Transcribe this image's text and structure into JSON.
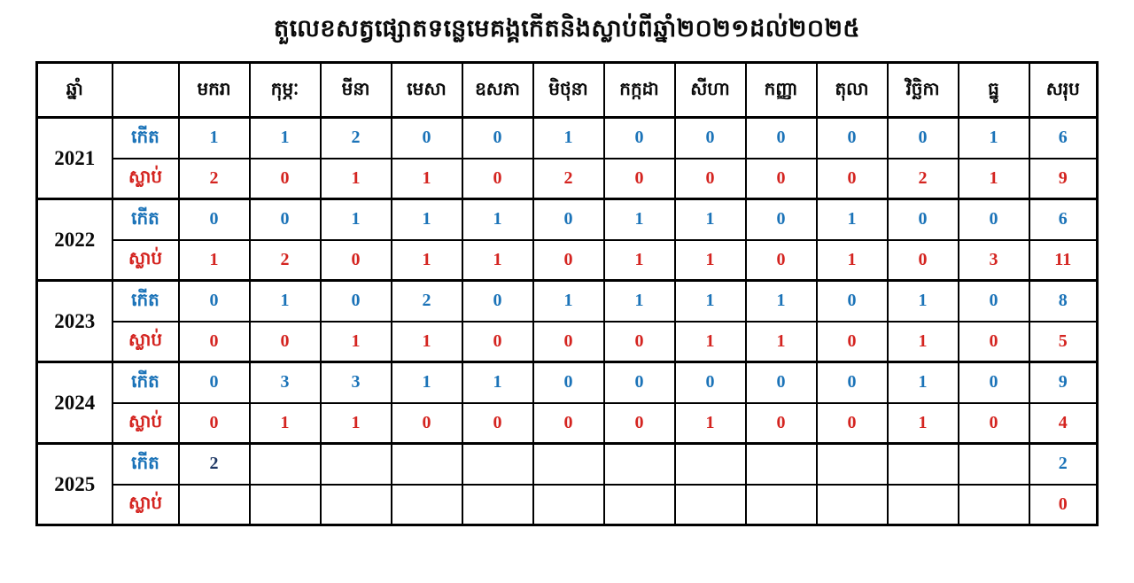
{
  "title": "តួលេខសត្វផ្សោតទន្លេមេគង្គកើតនិងស្លាប់ពីឆ្នាំ២០២១ដល់២០២៥",
  "colors": {
    "born_blue": "#1b73b8",
    "died_red": "#d42420",
    "dark_navy": "#1f3864",
    "border_black": "#000000",
    "background": "#ffffff"
  },
  "table": {
    "year_header": "ឆ្នាំ",
    "label_header": "",
    "months": [
      "មករា",
      "កុម្ភៈ",
      "មីនា",
      "មេសា",
      "ឧសភា",
      "មិថុនា",
      "កក្កដា",
      "សីហា",
      "កញ្ញា",
      "តុលា",
      "វិច្ឆិកា",
      "ធ្នូ"
    ],
    "total_header": "សរុប",
    "row_labels": {
      "born": "កើត",
      "died": "ស្លាប់"
    },
    "years": [
      {
        "year": "2021",
        "born": [
          "1",
          "1",
          "2",
          "0",
          "0",
          "1",
          "0",
          "0",
          "0",
          "0",
          "0",
          "1"
        ],
        "born_total": "6",
        "died": [
          "2",
          "0",
          "1",
          "1",
          "0",
          "2",
          "0",
          "0",
          "0",
          "0",
          "2",
          "1"
        ],
        "died_total": "9"
      },
      {
        "year": "2022",
        "born": [
          "0",
          "0",
          "1",
          "1",
          "1",
          "0",
          "1",
          "1",
          "0",
          "1",
          "0",
          "0"
        ],
        "born_total": "6",
        "died": [
          "1",
          "2",
          "0",
          "1",
          "1",
          "0",
          "1",
          "1",
          "0",
          "1",
          "0",
          "3"
        ],
        "died_total": "11"
      },
      {
        "year": "2023",
        "born": [
          "0",
          "1",
          "0",
          "2",
          "0",
          "1",
          "1",
          "1",
          "1",
          "0",
          "1",
          "0"
        ],
        "born_total": "8",
        "died": [
          "0",
          "0",
          "1",
          "1",
          "0",
          "0",
          "0",
          "1",
          "1",
          "0",
          "1",
          "0"
        ],
        "died_total": "5"
      },
      {
        "year": "2024",
        "born": [
          "0",
          "3",
          "3",
          "1",
          "1",
          "0",
          "0",
          "0",
          "0",
          "0",
          "1",
          "0"
        ],
        "born_total": "9",
        "died": [
          "0",
          "1",
          "1",
          "0",
          "0",
          "0",
          "0",
          "1",
          "0",
          "0",
          "1",
          "0"
        ],
        "died_total": "4"
      },
      {
        "year": "2025",
        "born": [
          "2",
          "",
          "",
          "",
          "",
          "",
          "",
          "",
          "",
          "",
          "",
          ""
        ],
        "born_total": "2",
        "born_dark_index": 0,
        "died": [
          "",
          "",
          "",
          "",
          "",
          "",
          "",
          "",
          "",
          "",
          "",
          ""
        ],
        "died_total": "0"
      }
    ]
  }
}
